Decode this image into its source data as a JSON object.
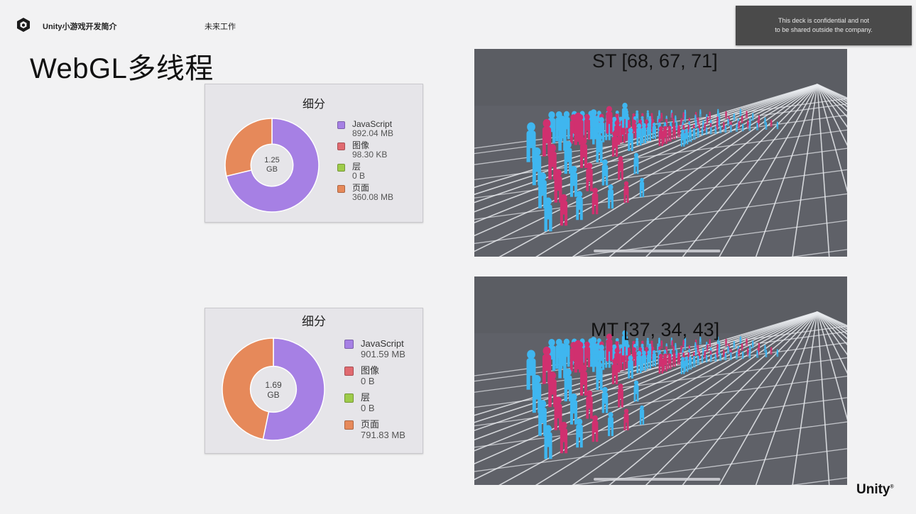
{
  "header": {
    "title": "Unity小游戏开发简介",
    "section": "未来工作",
    "confidential_line1": "This deck is confidential and not",
    "confidential_line2": "to be shared outside the company."
  },
  "slide": {
    "title": "WebGL多线程"
  },
  "panels": [
    {
      "title": "细分",
      "total_value": "1.25",
      "total_unit": "GB",
      "legend": [
        {
          "label": "JavaScript",
          "value": "892.04 MB",
          "color": "#a680e4"
        },
        {
          "label": "图像",
          "value": "98.30 KB",
          "color": "#e06a70"
        },
        {
          "label": "层",
          "value": "0 B",
          "color": "#9ecb4a"
        },
        {
          "label": "页面",
          "value": "360.08 MB",
          "color": "#e6895a"
        }
      ],
      "segments": [
        {
          "name": "JavaScript",
          "value": 892.04,
          "color": "#a680e4"
        },
        {
          "name": "页面",
          "value": 360.08,
          "color": "#e6895a"
        }
      ]
    },
    {
      "title": "细分",
      "total_value": "1.69",
      "total_unit": "GB",
      "legend": [
        {
          "label": "JavaScript",
          "value": "901.59 MB",
          "color": "#a680e4"
        },
        {
          "label": "图像",
          "value": "0 B",
          "color": "#e06a70"
        },
        {
          "label": "层",
          "value": "0 B",
          "color": "#9ecb4a"
        },
        {
          "label": "页面",
          "value": "791.83 MB",
          "color": "#e6895a"
        }
      ],
      "segments": [
        {
          "name": "JavaScript",
          "value": 901.59,
          "color": "#a680e4"
        },
        {
          "name": "页面",
          "value": 791.83,
          "color": "#e6895a"
        }
      ]
    }
  ],
  "scenes": [
    {
      "label": "ST [68, 67, 71]"
    },
    {
      "label": "MT [37, 34, 43]"
    }
  ],
  "brand": {
    "name": "Unity",
    "mark": "®"
  },
  "colors": {
    "crowd_blue": "#3fb6ef",
    "crowd_magenta": "#d0306f",
    "scene_bg": "#5b5d63",
    "grid": "#e9ebef"
  }
}
